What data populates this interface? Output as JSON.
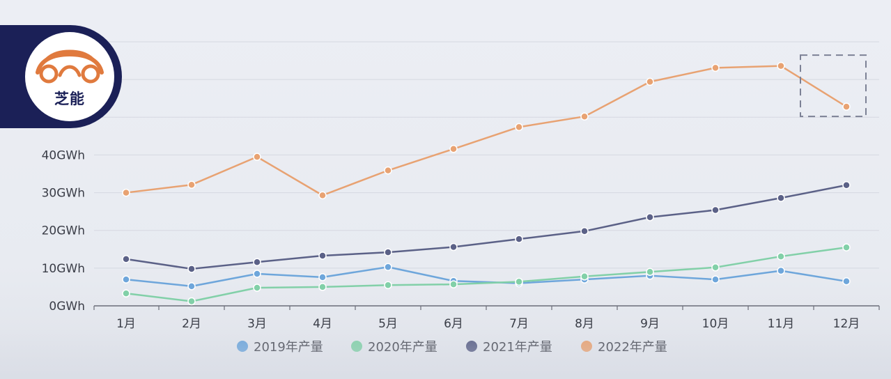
{
  "logo": {
    "text": "芝能",
    "colors": {
      "badge": "#1b2057",
      "mark": "#e07a3e"
    }
  },
  "highlight_box": {
    "around": "12月",
    "series": "2022年产量"
  },
  "chart_data": {
    "type": "line",
    "title": "",
    "xlabel": "",
    "ylabel": "",
    "unit": "GWh",
    "ylim": [
      0,
      70
    ],
    "y_ticks": [
      0,
      10,
      20,
      30,
      40,
      50,
      60,
      70
    ],
    "y_tick_labels": [
      "0GWh",
      "10GWh",
      "20GWh",
      "30GWh",
      "40GWh",
      "",
      "",
      ""
    ],
    "grid": true,
    "legend_position": "bottom",
    "categories": [
      "1月",
      "2月",
      "3月",
      "4月",
      "5月",
      "6月",
      "7月",
      "8月",
      "9月",
      "10月",
      "11月",
      "12月"
    ],
    "series": [
      {
        "name": "2019年产量",
        "color": "#6ea6db",
        "values": [
          7.0,
          5.2,
          8.5,
          7.6,
          10.3,
          6.6,
          6.0,
          7.0,
          8.0,
          7.0,
          9.3,
          6.5
        ]
      },
      {
        "name": "2020年产量",
        "color": "#82d0a8",
        "values": [
          3.3,
          1.2,
          4.8,
          5.0,
          5.5,
          5.7,
          6.4,
          7.8,
          9.0,
          10.2,
          13.1,
          15.5
        ]
      },
      {
        "name": "2021年产量",
        "color": "#5b6187",
        "values": [
          12.4,
          9.8,
          11.6,
          13.3,
          14.2,
          15.6,
          17.7,
          19.8,
          23.5,
          25.4,
          28.6,
          32.0
        ]
      },
      {
        "name": "2022年产量",
        "color": "#e8a272",
        "values": [
          30.0,
          32.1,
          39.5,
          29.3,
          35.9,
          41.6,
          47.4,
          50.2,
          59.4,
          63.1,
          63.6,
          52.8
        ]
      }
    ]
  }
}
